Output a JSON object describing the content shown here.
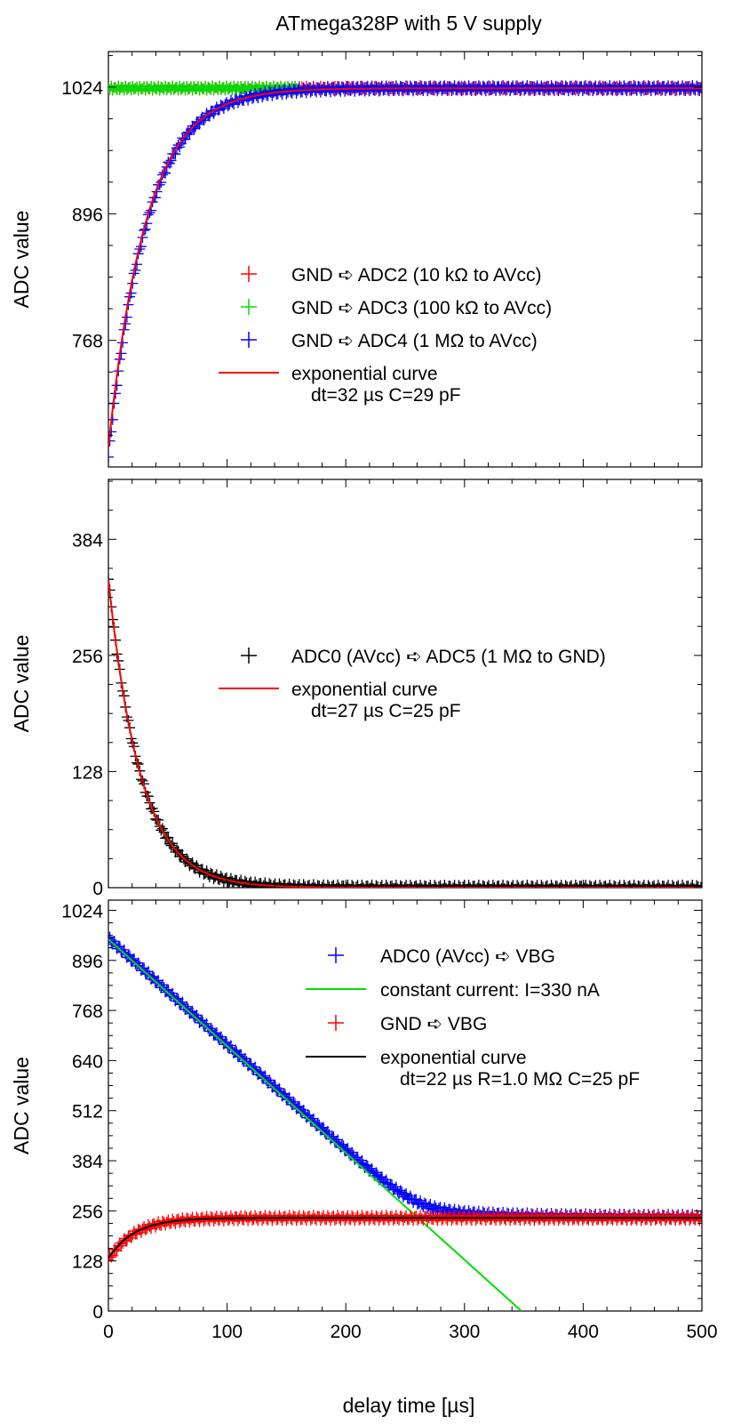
{
  "figure": {
    "title": "ATmega328P with 5 V supply",
    "xlabel": "delay time [µs]",
    "ylabel": "ADC value"
  },
  "chart_data": [
    {
      "type": "scatter",
      "xlim": [
        0,
        500
      ],
      "ylim": [
        640,
        1060
      ],
      "yticks": [
        768,
        896,
        1024
      ],
      "xticks": [
        0,
        100,
        200,
        300,
        400,
        500
      ],
      "ylabel": "ADC value",
      "series": [
        {
          "name": "GND ➪ ADC2 (10 kΩ to AVcc)",
          "marker": "+",
          "color": "#ff0000",
          "kind": "constant",
          "x": [
            0,
            500
          ],
          "y": [
            1023,
            1023
          ]
        },
        {
          "name": "GND ➪ ADC3 (100 kΩ to AVcc)",
          "marker": "+",
          "color": "#00dd00",
          "kind": "constant",
          "x": [
            0,
            160
          ],
          "y": [
            1023,
            1023
          ]
        },
        {
          "name": "GND ➪ ADC4 (1 MΩ to AVcc)",
          "marker": "+",
          "color": "#0000ff",
          "kind": "exp",
          "x": [
            0,
            500
          ],
          "y0": 650,
          "yinf": 1023,
          "tau": 32
        },
        {
          "name": "exponential curve",
          "subtitle": "dt=32 µs C=29 pF",
          "line": true,
          "color": "#ff0000",
          "kind": "exp",
          "x": [
            0,
            500
          ],
          "y0": 660,
          "yinf": 1023,
          "tau": 32
        }
      ],
      "legend": "center-right"
    },
    {
      "type": "scatter",
      "xlim": [
        0,
        500
      ],
      "ylim": [
        0,
        450
      ],
      "yticks": [
        0,
        128,
        256,
        384
      ],
      "xticks": [
        0,
        100,
        200,
        300,
        400,
        500
      ],
      "ylabel": "ADC value",
      "series": [
        {
          "name": "ADC0 (AVcc) ➪ ADC5 (1 MΩ to GND)",
          "marker": "+",
          "color": "#000000",
          "kind": "exp",
          "x": [
            0,
            500
          ],
          "y0": 340,
          "yinf": 0,
          "tau": 27
        },
        {
          "name": "exponential curve",
          "subtitle": "dt=27 µs C=25 pF",
          "line": true,
          "color": "#ff0000",
          "kind": "exp",
          "x": [
            0,
            500
          ],
          "y0": 340,
          "yinf": 0,
          "tau": 27
        }
      ],
      "legend": "center-right"
    },
    {
      "type": "scatter",
      "xlim": [
        0,
        500
      ],
      "ylim": [
        0,
        1050
      ],
      "yticks": [
        0,
        128,
        256,
        384,
        512,
        640,
        768,
        896,
        1024
      ],
      "xticks": [
        0,
        100,
        200,
        300,
        400,
        500
      ],
      "xlabel": "delay time [µs]",
      "ylabel": "ADC value",
      "series": [
        {
          "name": "ADC0 (AVcc) ➪ VBG",
          "marker": "+",
          "color": "#0000ff",
          "kind": "vbg",
          "x": [
            0,
            500
          ]
        },
        {
          "name": "constant current: I=330 nA",
          "line": true,
          "color": "#00dd00",
          "kind": "linear",
          "x": [
            0,
            348
          ],
          "y": [
            950,
            0
          ]
        },
        {
          "name": "GND ➪ VBG",
          "marker": "+",
          "color": "#ff0000",
          "kind": "exp",
          "x": [
            0,
            500
          ],
          "y0": 130,
          "yinf": 238,
          "tau": 22
        },
        {
          "name": "exponential curve",
          "subtitle": "dt=22 µs R=1.0 MΩ C=25 pF",
          "line": true,
          "color": "#000000",
          "kind": "exp",
          "x": [
            0,
            500
          ],
          "y0": 135,
          "yinf": 238,
          "tau": 22
        }
      ],
      "legend": "top-right"
    }
  ]
}
